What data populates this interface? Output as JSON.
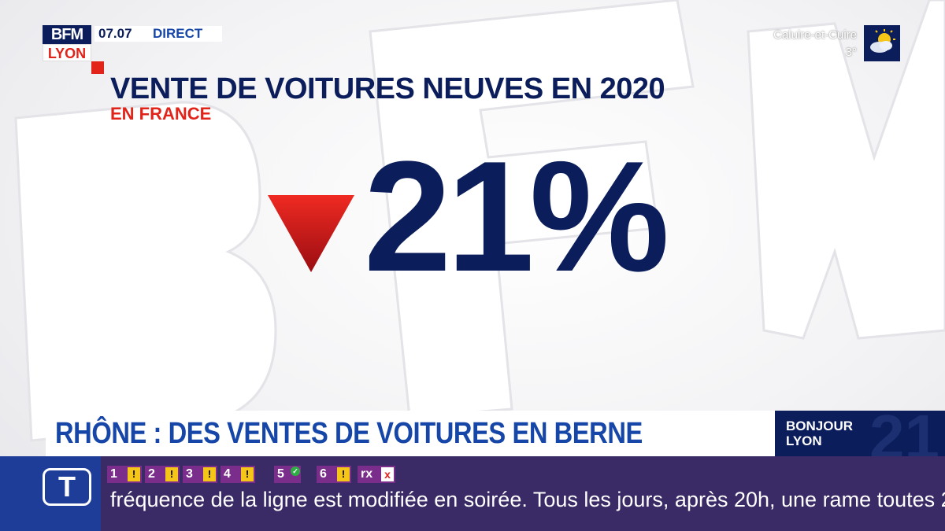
{
  "channel": {
    "logo_top": "BFM",
    "logo_city": "LYON",
    "time": "07.07",
    "live_label": "DIRECT"
  },
  "weather": {
    "city": "Caluire-et-Cuire",
    "temperature": "3°",
    "icon": "sun-cloud-icon"
  },
  "graphic": {
    "title": "VENTE DE VOITURES NEUVES EN 2020",
    "subtitle": "EN FRANCE",
    "trend_icon": "down-triangle-icon",
    "value": "21%",
    "colors": {
      "navy": "#0b1e5b",
      "red": "#e2231a",
      "blue": "#1646a8"
    }
  },
  "banner": {
    "headline": "RHÔNE : DES VENTES DE VOITURES EN BERNE",
    "show_line1": "BONJOUR",
    "show_line2": "LYON"
  },
  "ticker": {
    "logo": "T",
    "lines": [
      {
        "num": "1",
        "status": "!"
      },
      {
        "num": "2",
        "status": "!"
      },
      {
        "num": "3",
        "status": "!"
      },
      {
        "num": "4",
        "status": "!"
      },
      {
        "num": "5",
        "status": "✓"
      },
      {
        "num": "6",
        "status": "!"
      },
      {
        "num": "rx",
        "status": "x"
      }
    ],
    "text": "fréquence de la ligne est modifiée en soirée. Tous les jours, après 20h, une rame toutes 2"
  }
}
